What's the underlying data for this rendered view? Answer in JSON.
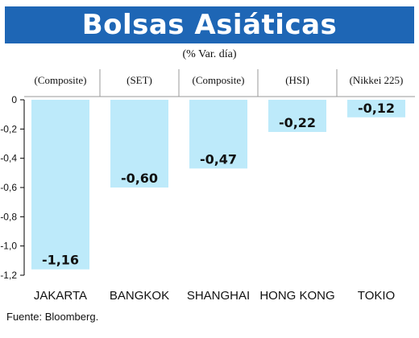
{
  "chart_data": {
    "type": "bar",
    "title": "Bolsas Asiáticas",
    "subtitle": "(% Var. día)",
    "categories": [
      "JAKARTA",
      "BANGKOK",
      "SHANGHAI",
      "HONG KONG",
      "TOKIO"
    ],
    "indices": [
      "(Composite)",
      "(SET)",
      "(Composite)",
      "(HSI)",
      "(Nikkei 225)"
    ],
    "values": [
      -1.16,
      -0.6,
      -0.47,
      -0.22,
      -0.12
    ],
    "value_labels": [
      "-1,16",
      "-0,60",
      "-0,47",
      "-0,22",
      "-0,12"
    ],
    "yticks": [
      "0",
      "-0,2",
      "-0,4",
      "-0,6",
      "-0,8",
      "-1,0",
      "-1,2"
    ],
    "ytick_values": [
      0,
      -0.2,
      -0.4,
      -0.6,
      -0.8,
      -1.0,
      -1.2
    ],
    "ylim": [
      -1.2,
      0
    ],
    "grid": false,
    "bar_color": "#bdeafa",
    "title_bar_color": "#1e66b5",
    "source": "Fuente: Bloomberg."
  }
}
